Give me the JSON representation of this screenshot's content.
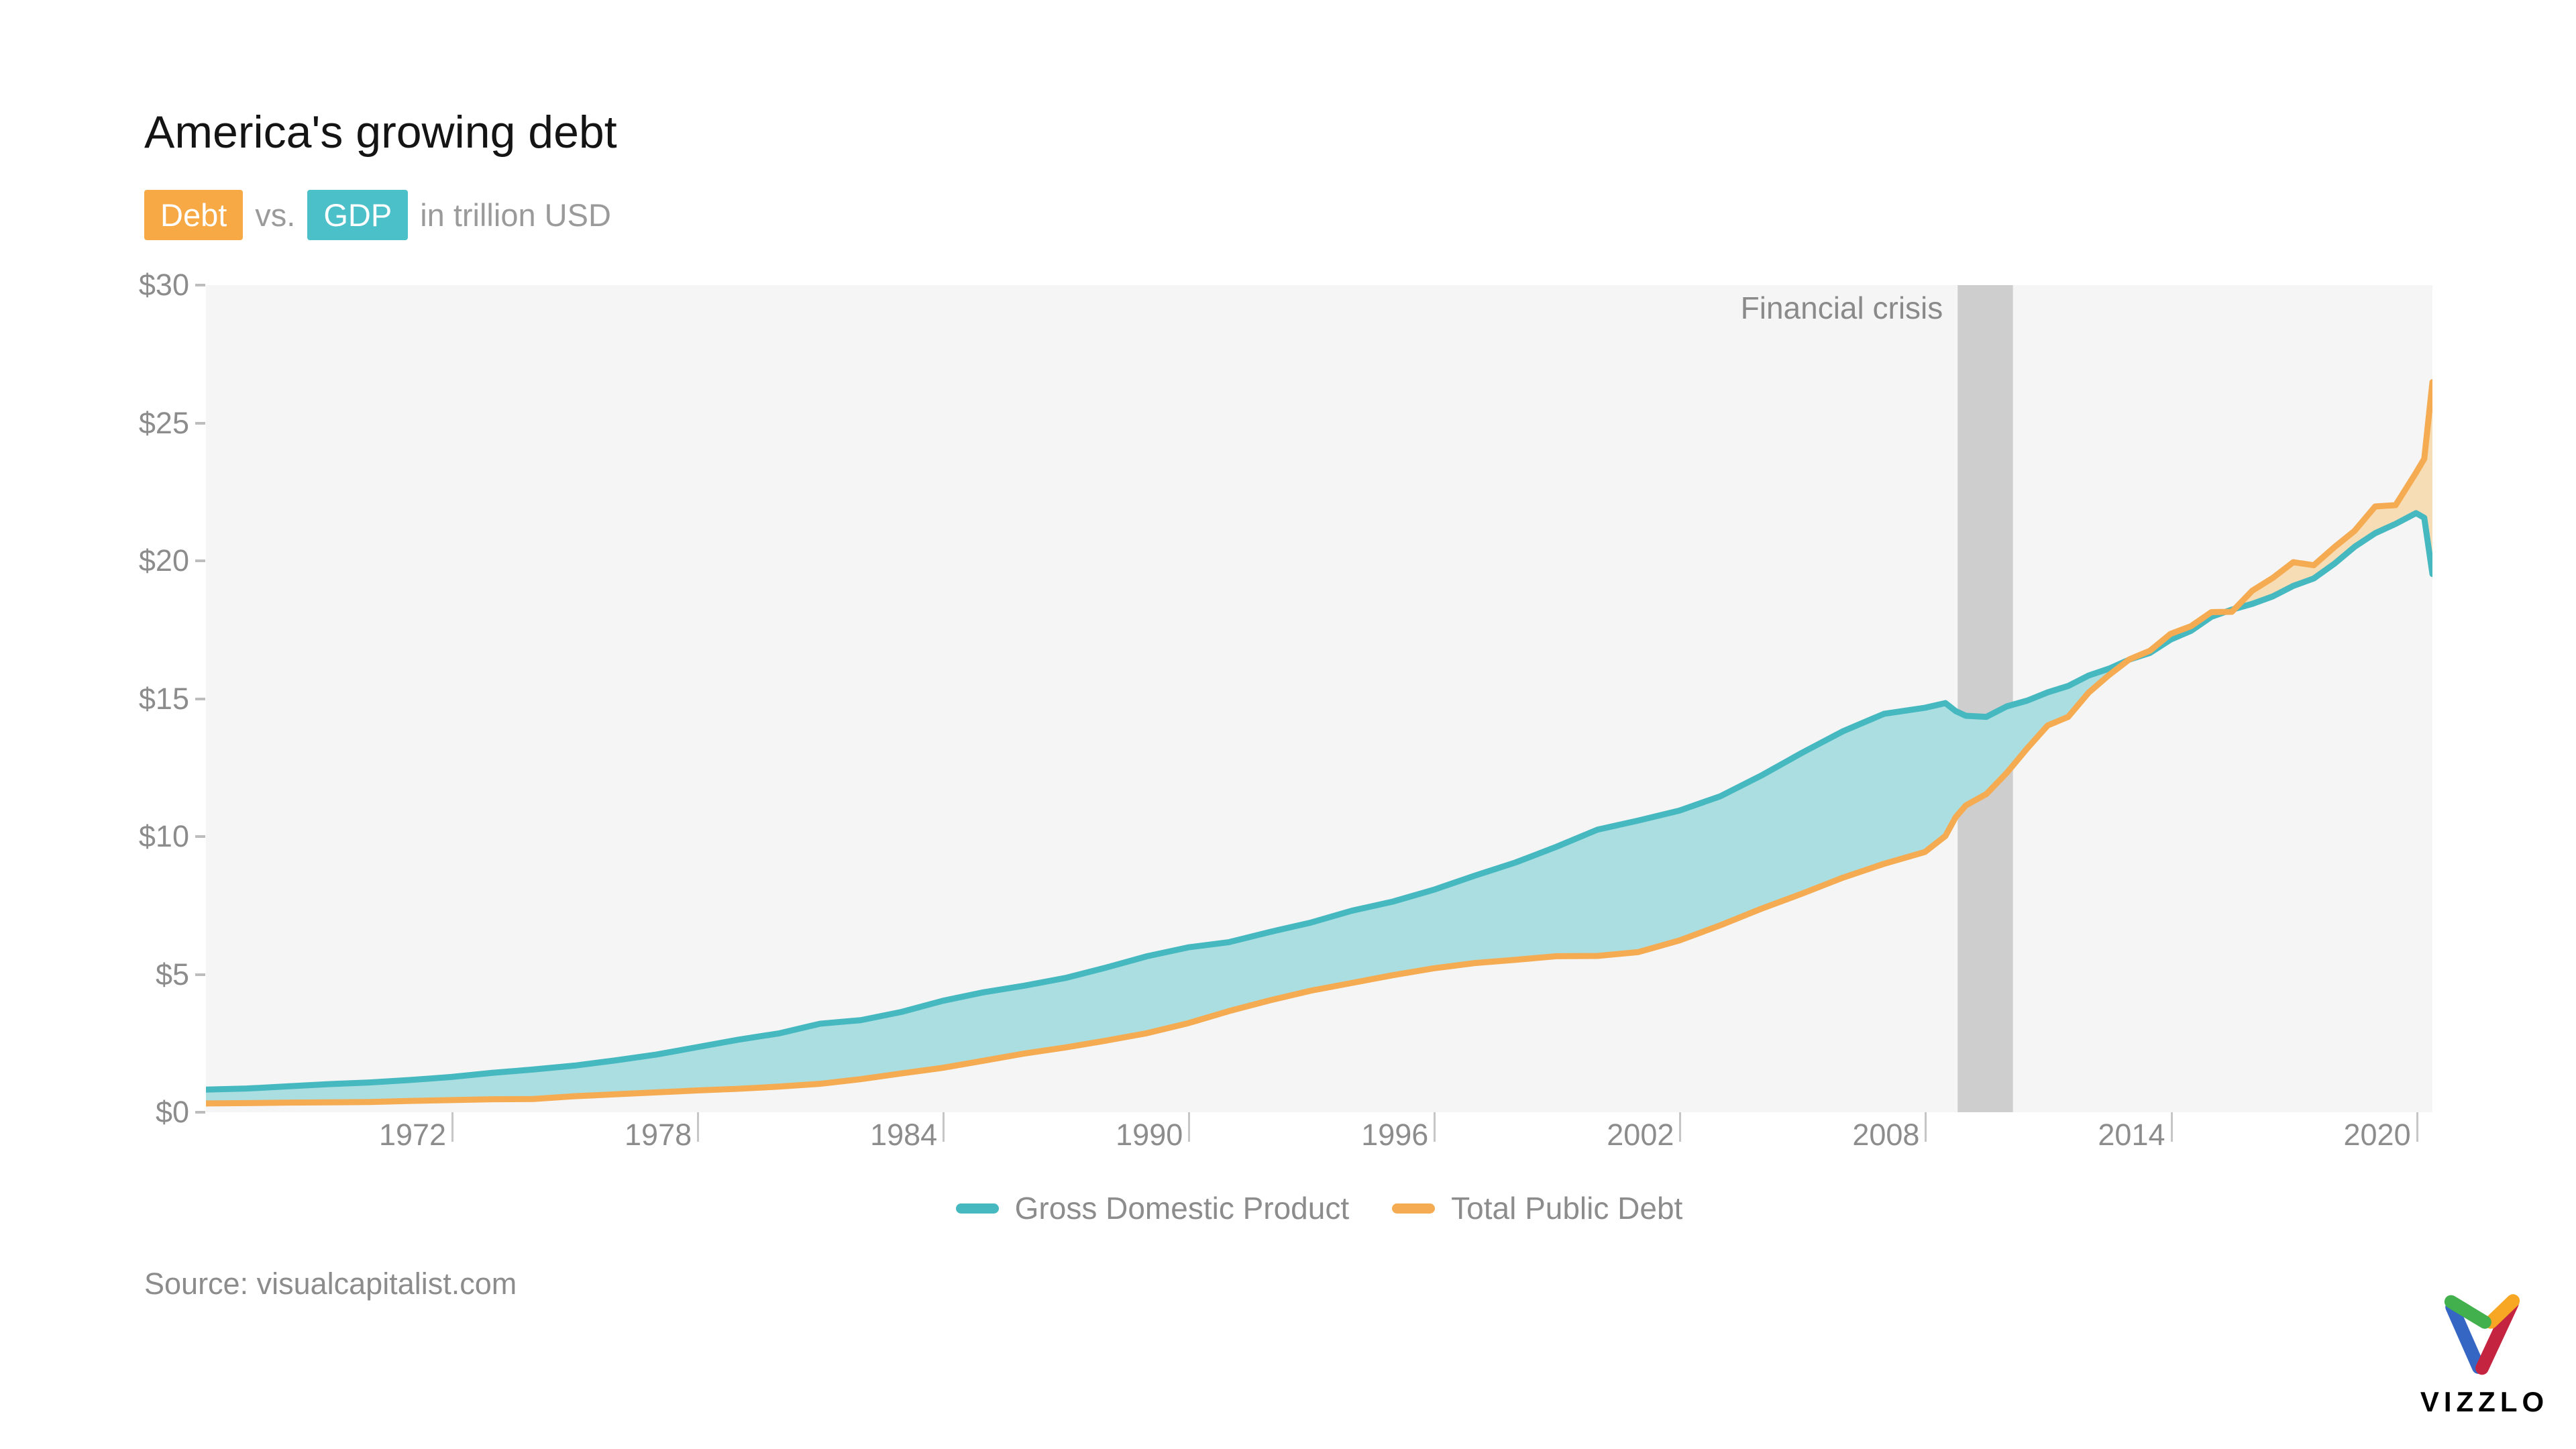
{
  "header": {
    "title": "America's growing debt",
    "subtitle": {
      "debt_badge": "Debt",
      "vs": "vs.",
      "gdp_badge": "GDP",
      "suffix": "in trillion USD"
    }
  },
  "colors": {
    "page_background": "#ffffff",
    "plot_background": "#f5f5f5",
    "band": "#cecece",
    "tick": "#c6c6c6",
    "title_text": "#141414",
    "muted_text": "#8c8c8c",
    "debt_badge_bg": "#f7a946",
    "gdp_badge_bg": "#4cc0c8"
  },
  "chart_data": {
    "type": "area",
    "title": "America's growing debt",
    "subtitle": "Debt vs. GDP in trillion USD",
    "unit": "trillion USD",
    "grid": false,
    "legend_position": "bottom",
    "xlim": [
      1966,
      2020.4
    ],
    "ylim": [
      0,
      30
    ],
    "x_ticks": [
      {
        "value": 1972,
        "label": "1972"
      },
      {
        "value": 1978,
        "label": "1978"
      },
      {
        "value": 1984,
        "label": "1984"
      },
      {
        "value": 1990,
        "label": "1990"
      },
      {
        "value": 1996,
        "label": "1996"
      },
      {
        "value": 2002,
        "label": "2002"
      },
      {
        "value": 2008,
        "label": "2008"
      },
      {
        "value": 2014,
        "label": "2014"
      },
      {
        "value": 2020,
        "label": "2020"
      }
    ],
    "y_ticks": [
      {
        "value": 0,
        "label": "$0"
      },
      {
        "value": 5,
        "label": "$5"
      },
      {
        "value": 10,
        "label": "$10"
      },
      {
        "value": 15,
        "label": "$15"
      },
      {
        "value": 20,
        "label": "$20"
      },
      {
        "value": 25,
        "label": "$25"
      },
      {
        "value": 30,
        "label": "$30"
      }
    ],
    "annotation_band": {
      "label": "Financial crisis",
      "x0": 2008.8,
      "x1": 2010.15
    },
    "x": [
      1966,
      1967,
      1968,
      1969,
      1970,
      1971,
      1972,
      1973,
      1974,
      1975,
      1976,
      1977,
      1978,
      1979,
      1980,
      1981,
      1982,
      1983,
      1984,
      1985,
      1986,
      1987,
      1988,
      1989,
      1990,
      1991,
      1992,
      1993,
      1994,
      1995,
      1996,
      1997,
      1998,
      1999,
      2000,
      2001,
      2002,
      2003,
      2004,
      2005,
      2006,
      2007,
      2008,
      2008.5,
      2008.75,
      2009,
      2009.5,
      2010,
      2010.5,
      2011,
      2011.5,
      2012,
      2012.5,
      2013,
      2013.5,
      2014,
      2014.5,
      2015,
      2015.5,
      2016,
      2016.5,
      2017,
      2017.5,
      2018,
      2018.5,
      2019,
      2019.5,
      2020,
      2020.2,
      2020.4
    ],
    "series": [
      {
        "name": "Gross Domestic Product",
        "color": "#46b8c0",
        "fill": "#abdee1",
        "values": [
          0.82,
          0.86,
          0.94,
          1.02,
          1.08,
          1.17,
          1.28,
          1.43,
          1.55,
          1.69,
          1.88,
          2.09,
          2.36,
          2.63,
          2.86,
          3.21,
          3.34,
          3.64,
          4.04,
          4.35,
          4.59,
          4.87,
          5.25,
          5.66,
          5.98,
          6.17,
          6.54,
          6.88,
          7.31,
          7.64,
          8.07,
          8.58,
          9.06,
          9.63,
          10.25,
          10.58,
          10.94,
          11.46,
          12.21,
          13.04,
          13.82,
          14.45,
          14.67,
          14.84,
          14.55,
          14.38,
          14.34,
          14.72,
          14.93,
          15.23,
          15.46,
          15.84,
          16.09,
          16.42,
          16.66,
          17.14,
          17.46,
          17.97,
          18.23,
          18.44,
          18.71,
          19.09,
          19.36,
          19.89,
          20.51,
          21.0,
          21.34,
          21.73,
          21.56,
          19.52
        ]
      },
      {
        "name": "Total Public Debt",
        "color": "#f5ab52",
        "fill": "#f7ddb5",
        "values": [
          0.32,
          0.33,
          0.35,
          0.36,
          0.37,
          0.41,
          0.44,
          0.47,
          0.48,
          0.58,
          0.65,
          0.72,
          0.79,
          0.85,
          0.93,
          1.03,
          1.2,
          1.41,
          1.61,
          1.87,
          2.13,
          2.35,
          2.6,
          2.87,
          3.23,
          3.67,
          4.06,
          4.41,
          4.69,
          4.97,
          5.22,
          5.41,
          5.53,
          5.66,
          5.67,
          5.81,
          6.23,
          6.78,
          7.38,
          7.93,
          8.51,
          9.01,
          9.44,
          10.02,
          10.7,
          11.13,
          11.54,
          12.31,
          13.2,
          14.03,
          14.34,
          15.22,
          15.86,
          16.43,
          16.74,
          17.35,
          17.63,
          18.14,
          18.15,
          18.92,
          19.38,
          19.95,
          19.84,
          20.49,
          21.09,
          21.97,
          22.02,
          23.2,
          23.7,
          26.48
        ]
      }
    ]
  },
  "legend": {
    "items": [
      {
        "label": "Gross Domestic Product",
        "color": "#46b8c0"
      },
      {
        "label": "Total Public Debt",
        "color": "#f5ab52"
      }
    ]
  },
  "source": {
    "text": "Source: visualcapitalist.com"
  },
  "branding": {
    "wordmark": "VIZZLO",
    "logo_colors": {
      "green": "#42b04d",
      "orange": "#f7a723",
      "blue": "#3566c4",
      "red": "#c52441"
    }
  }
}
